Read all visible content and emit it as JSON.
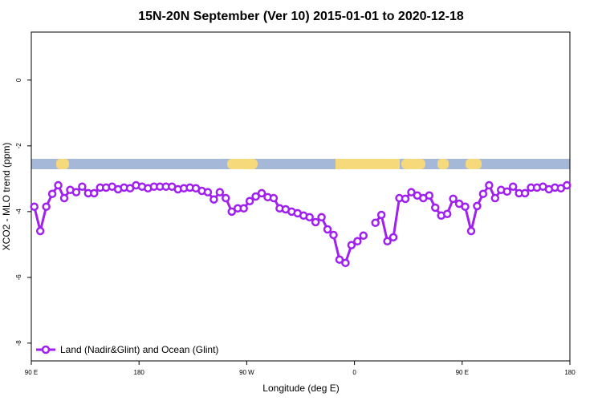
{
  "chart_data": {
    "type": "line",
    "title": "15N-20N September (Ver 10)   2015-01-01 to 2020-12-18",
    "x_label": "Longitude (deg E)",
    "y_label": "XCO2 - MLO trend (ppm)",
    "xlim": [
      90,
      540
    ],
    "ylim": [
      1.46,
      -8.54
    ],
    "xticks": [
      {
        "value": 90,
        "label": "90 E"
      },
      180,
      {
        "value": 270,
        "label": "90 W"
      },
      {
        "value": 360,
        "label": "0"
      },
      {
        "value": 450,
        "label": "90 E"
      },
      {
        "value": 540,
        "label": "180"
      }
    ],
    "yticks": [
      0,
      -2,
      -4,
      -6,
      -8
    ],
    "legend_position": "bottom-left",
    "x": [
      92.5,
      97.5,
      102.5,
      107.5,
      112.5,
      117.5,
      122.5,
      127.5,
      132.5,
      137.5,
      142.5,
      147.5,
      152.5,
      157.5,
      162.5,
      167.5,
      172.5,
      177.5,
      182.5,
      187.5,
      192.5,
      197.5,
      202.5,
      207.5,
      212.5,
      217.5,
      222.5,
      227.5,
      232.5,
      237.5,
      242.5,
      247.5,
      252.5,
      257.5,
      262.5,
      267.5,
      272.5,
      277.5,
      282.5,
      287.5,
      292.5,
      297.5,
      302.5,
      307.5,
      312.5,
      317.5,
      322.5,
      327.5,
      332.5,
      337.5,
      342.5,
      347.5,
      352.5,
      357.5,
      362.5,
      367.5,
      372.5,
      377.5,
      382.5,
      387.5,
      392.5,
      397.5,
      402.5,
      407.5,
      412.5,
      417.5,
      422.5,
      427.5,
      432.5,
      437.5,
      442.5,
      447.5,
      452.5,
      457.5,
      462.5,
      467.5,
      472.5,
      477.5,
      482.5,
      487.5,
      492.5,
      497.5,
      502.5,
      507.5,
      512.5,
      517.5,
      522.5,
      527.5,
      532.5,
      537.5
    ],
    "series": [
      {
        "name": "Land (Nadir&Glint) and Ocean (Glint)",
        "color": "#a020f0",
        "values": [
          -3.85,
          -4.59,
          -3.85,
          -3.46,
          -3.2,
          -3.59,
          -3.34,
          -3.41,
          -3.24,
          -3.44,
          -3.44,
          -3.27,
          -3.27,
          -3.24,
          -3.32,
          -3.27,
          -3.29,
          -3.2,
          -3.24,
          -3.29,
          -3.24,
          -3.24,
          -3.24,
          -3.24,
          -3.32,
          -3.29,
          -3.27,
          -3.29,
          -3.37,
          -3.41,
          -3.63,
          -3.41,
          -3.59,
          -4.0,
          -3.9,
          -3.9,
          -3.68,
          -3.54,
          -3.44,
          -3.56,
          -3.59,
          -3.9,
          -3.93,
          -4.0,
          -4.05,
          -4.12,
          -4.17,
          -4.32,
          -4.17,
          -4.54,
          -4.71,
          -5.46,
          -5.56,
          -5.02,
          -4.9,
          -4.73,
          null,
          -4.34,
          -4.1,
          -4.9,
          -4.78,
          -3.59,
          -3.61,
          -3.41,
          -3.51,
          -3.59,
          -3.51,
          -3.88,
          -4.12,
          -4.07,
          -3.61,
          -3.76,
          -3.85,
          -4.59,
          -3.83,
          -3.46,
          -3.2,
          -3.59,
          -3.34,
          -3.39,
          -3.24,
          -3.44,
          -3.44,
          -3.27,
          -3.27,
          -3.24,
          -3.32,
          -3.27,
          -3.29,
          -3.2
        ]
      }
    ]
  }
}
